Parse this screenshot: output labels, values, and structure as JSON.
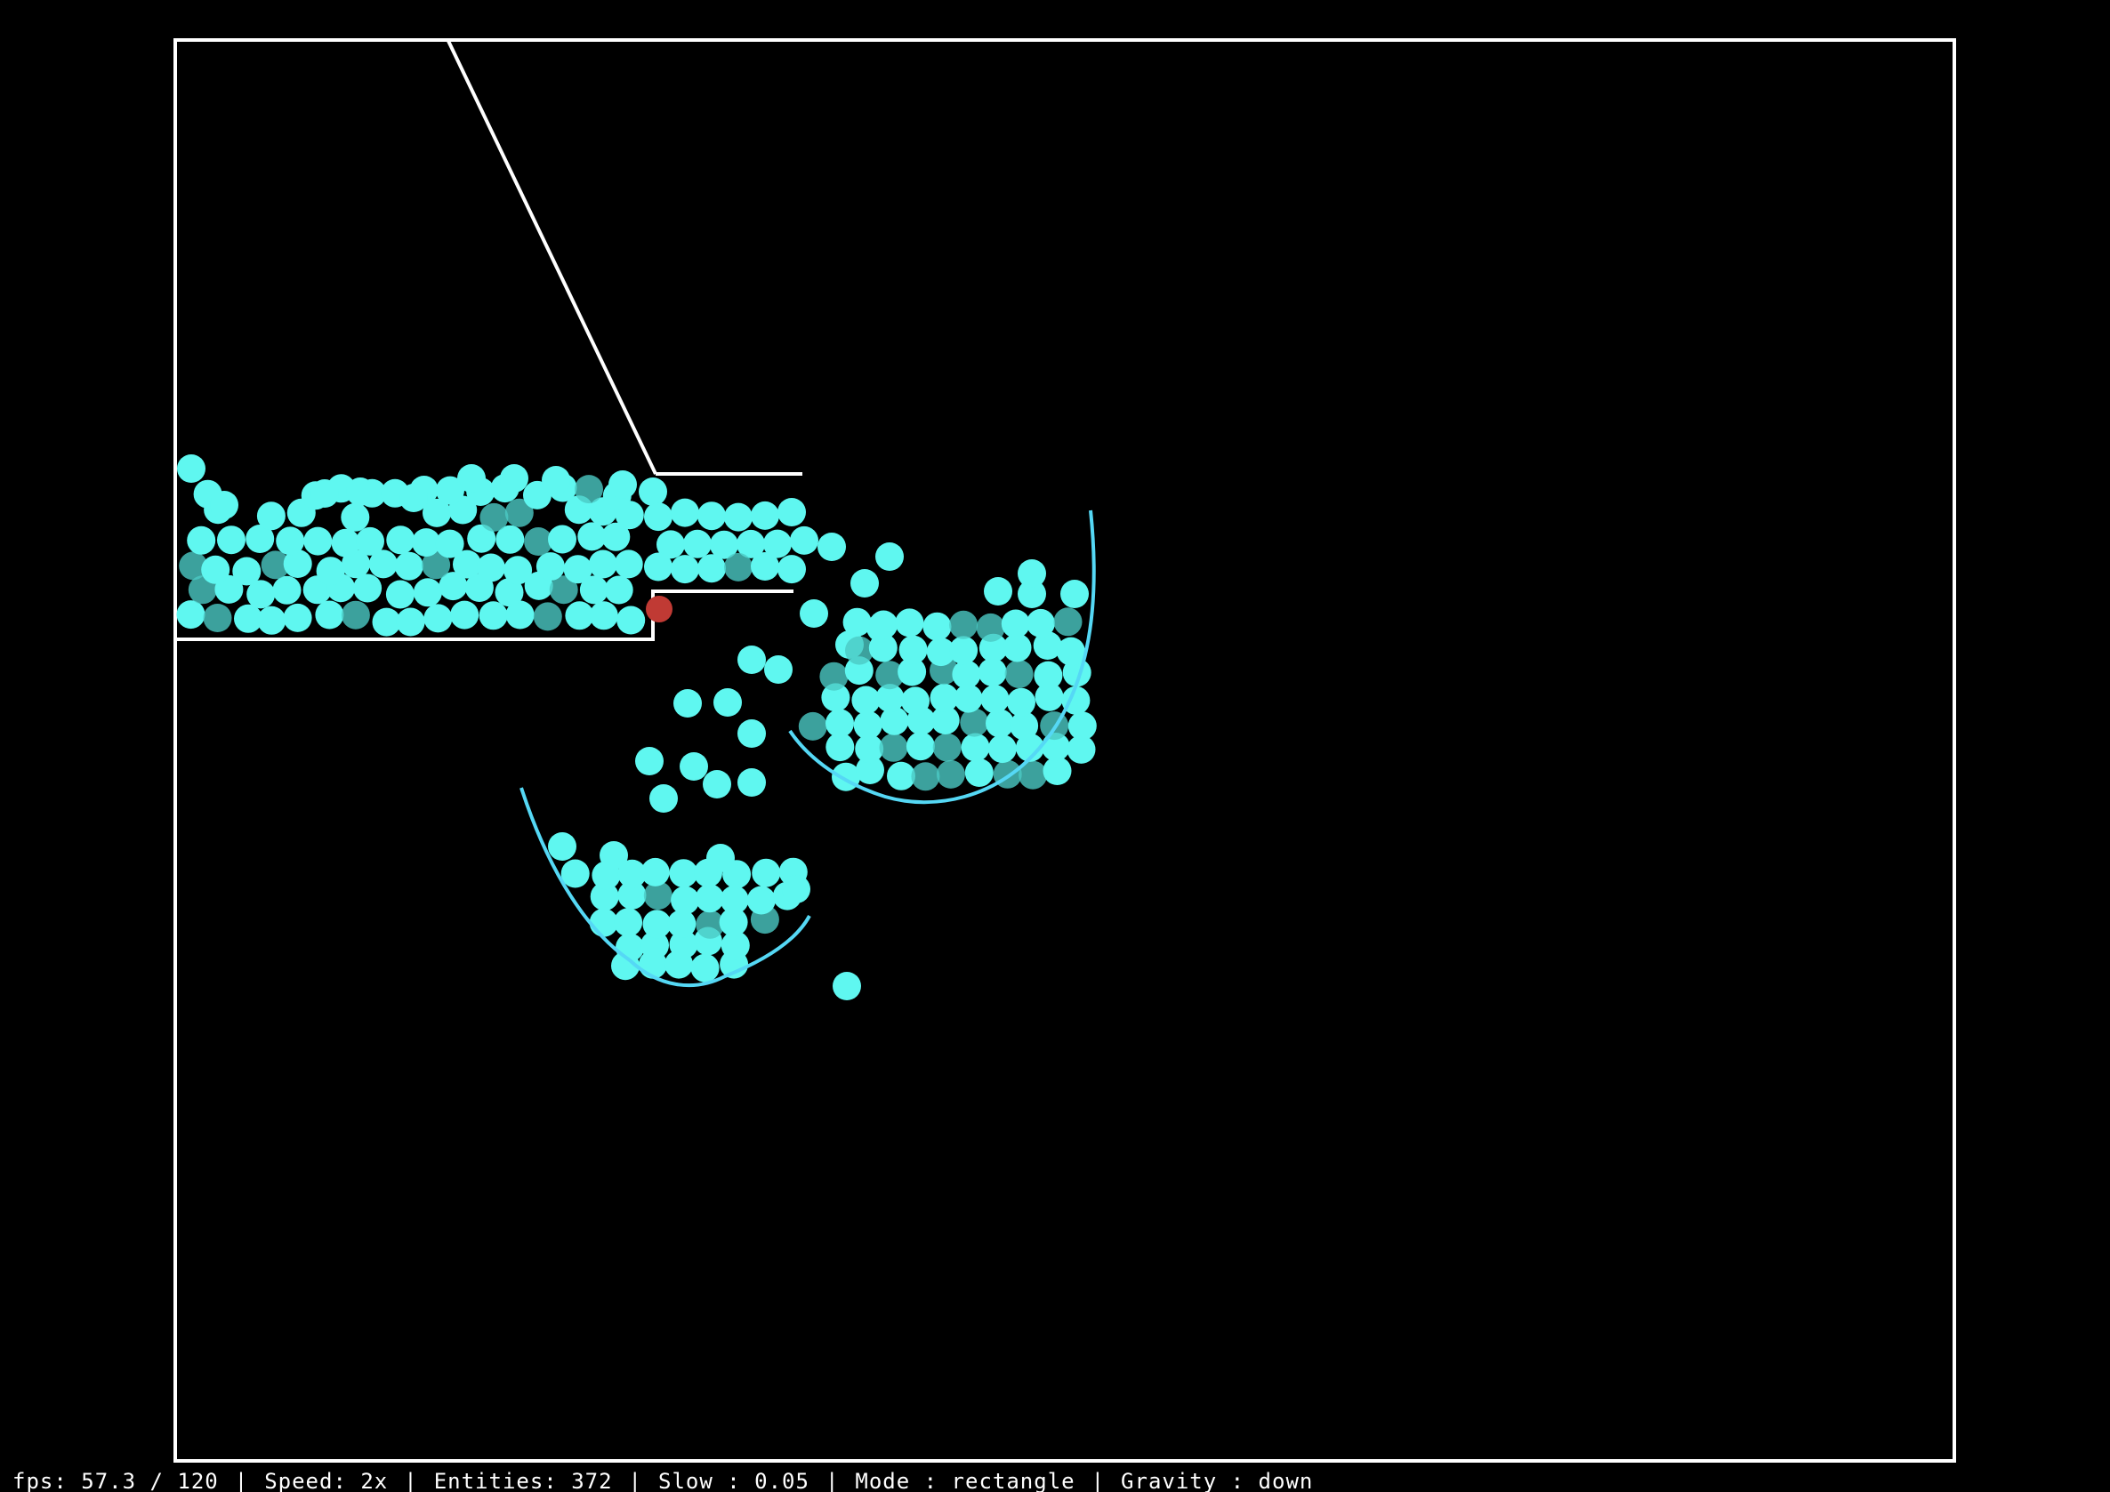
{
  "status_bar": {
    "fps": "fps: 57.3 / 120",
    "speed": "Speed: 2x",
    "entities": "Entities: 372",
    "slow": "Slow : 0.05",
    "mode": "Mode : rectangle",
    "gravity": "Gravity : down",
    "separator": "|"
  },
  "colors": {
    "background": "#000000",
    "wall": "#ffffff",
    "particle": "#5ff7f0",
    "particle_dim": "#4bc9c4",
    "cup": "#55d8f5",
    "selected_particle": "#c03a34"
  },
  "icons": {
    "particle": "circle",
    "selected_particle": "circle",
    "cup": "arc"
  }
}
